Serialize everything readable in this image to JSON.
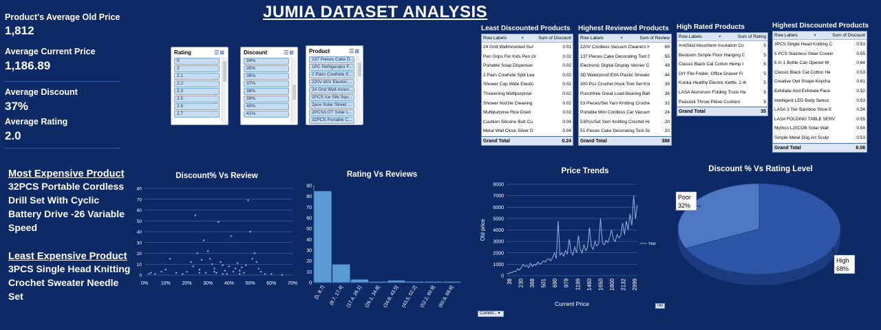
{
  "title": "JUMIA DATASET ANALYSIS",
  "kpis": [
    {
      "label": "Product's Average Old Price",
      "value": "1,812"
    },
    {
      "label": "Average Current Price",
      "value": "1,186.89"
    },
    {
      "label": "Average Discount",
      "value": "37%"
    },
    {
      "label": "Average Rating",
      "value": "2.0"
    }
  ],
  "most_expensive": {
    "label": "Most Expensive Product",
    "name": "32PCS Portable Cordless Drill Set With Cyclic Battery Drive -26 Variable Speed"
  },
  "least_expensive": {
    "label": "Least Expensive Product",
    "name": "3PCS Single Head Knitting Crochet Sweater Needle Set"
  },
  "slicers": {
    "ratings": {
      "label": "Rating",
      "items": [
        "0",
        "2",
        "2.1",
        "2.2",
        "2.3",
        "2.5",
        "2.6",
        "2.7"
      ]
    },
    "discount": {
      "label": "Discount",
      "items": [
        "34%",
        "35%",
        "36%",
        "37%",
        "38%",
        "39%",
        "40%",
        "41%"
      ]
    },
    "product": {
      "label": "Product",
      "items": [
        "137 Pieces Cake D...",
        "1PC Refrigerator F...",
        "2 Pairs Cowhide S...",
        "220V 80V Electric ...",
        "24 Grid Wall-moun...",
        "2PCS Ice Silk Squ...",
        "2pce Solar Street ...",
        "2PCS/LOT Solar L...",
        "32PCS Portable C..."
      ]
    }
  },
  "tables": [
    {
      "title": "Least Discounted Products",
      "col1": "Row Labels",
      "col2": "Sum of Discount",
      "rows": [
        [
          "24 Grid Wallmounted Sur",
          "0.01"
        ],
        [
          "Pen Grips For Kids Pen Gr",
          "0.02"
        ],
        [
          "Portable Soap Dispenser",
          "0.02"
        ],
        [
          "2 Pairs Cowhide Split Lea",
          "0.02"
        ],
        [
          "Shower Cap Wide Elastic",
          "0.02"
        ],
        [
          "Thickening Multipurpose",
          "0.02"
        ],
        [
          "Shower Nozzle Cleaning",
          "0.02"
        ],
        [
          "Multipurpose Rice Drain",
          "0.02"
        ],
        [
          "Cushion Silicone Butt Cu",
          "0.04"
        ],
        [
          "Metal Wall Clock Silver D",
          "0.04"
        ]
      ],
      "total_label": "Grand Total",
      "total": "0.24"
    },
    {
      "title": "Highest Reviewed Products",
      "col1": "Row Labels",
      "col2": "Sum of Review",
      "rows": [
        [
          "220V Cordless Vacuum Cleaners Handh",
          "69"
        ],
        [
          "137 Pieces Cake Decorating Tool Set Ba",
          "55"
        ],
        [
          "Electronic Digital Display Vernier Calipe",
          "49"
        ],
        [
          "3D Waterproof EVA Plastic Shower Curt",
          "44"
        ],
        [
          "300 Pcs Crochet Hook Tool Set Knitting",
          "39"
        ],
        [
          "Punchfree Great Load Bearing Bathroom",
          "36"
        ],
        [
          "53 Pieces/Set Yarn Knitting Crochet Hoc",
          "32"
        ],
        [
          "Portable Mini Cordless Car Vacuum Clea",
          "24"
        ],
        [
          "53Pcs/Set Yarn Knitting Crochet Hooks",
          "20"
        ],
        [
          "51 Pieces Cake Decorating Tool Set Gift",
          "20"
        ]
      ],
      "total_label": "Grand Total",
      "total": "388"
    },
    {
      "title": "High Rated Products",
      "col1": "Row Labels",
      "col2": "Sum of Rating",
      "rows": [
        [
          "AntiSkid Absorbent Insulation Co",
          "5"
        ],
        [
          "Bestoom Simple Floor Hanging C",
          "5"
        ],
        [
          "Classic Black Cat Cotton Hemp I",
          "5"
        ],
        [
          "DIY File Folder, Office Drawer Fi",
          "5"
        ],
        [
          "Kunka Healthy Electric Kettle, 2.4l",
          "5"
        ],
        [
          "LASA Aluminum Folding Truck Ha",
          "5"
        ],
        [
          "Peacock Throw Pillow Cushion",
          "5"
        ]
      ],
      "total_label": "Grand Total",
      "total": "35"
    },
    {
      "title": "Highest Discounted Products",
      "col1": "Row Labels",
      "col2": "Sum of Discount",
      "rows": [
        [
          "3PCS Single Head Knitting C",
          "0.53"
        ],
        [
          "5 PCS Stainless Steel Cookin",
          "0.55"
        ],
        [
          "6 In 1 Bottle Can Opener M",
          "0.64"
        ],
        [
          "Classic Black Cat Cotton He",
          "0.53"
        ],
        [
          "Creative Owl Shape Keycha",
          "0.81"
        ],
        [
          "Exfoliate And Exfoliate Face",
          "0.52"
        ],
        [
          "Intelligent LED Body Senso",
          "0.53"
        ],
        [
          "LASA 3 Tier Bamboo Shoe E",
          "0.54"
        ],
        [
          "LASA FOLDING TABLE SERV",
          "0.55"
        ],
        [
          "Mythco L20COB Solar Wall",
          "0.54"
        ],
        [
          "Simple Metal Dog Art Sculp",
          "0.53"
        ]
      ],
      "total_label": "Grand Total",
      "total": "6.08"
    }
  ],
  "chart_data": [
    {
      "type": "scatter",
      "title": "Discount% Vs Review",
      "xlim": [
        0,
        0.7
      ],
      "ylim": [
        0,
        80
      ],
      "x_ticks": [
        "0%",
        "10%",
        "20%",
        "30%",
        "40%",
        "50%",
        "60%",
        "70%"
      ],
      "y_ticks": [
        "0",
        "10",
        "20",
        "30",
        "40",
        "50",
        "60",
        "70",
        "80"
      ],
      "points": [
        [
          0.02,
          1
        ],
        [
          0.03,
          2
        ],
        [
          0.05,
          1
        ],
        [
          0.08,
          3
        ],
        [
          0.1,
          5
        ],
        [
          0.12,
          15
        ],
        [
          0.15,
          2
        ],
        [
          0.18,
          1
        ],
        [
          0.2,
          3
        ],
        [
          0.22,
          12
        ],
        [
          0.23,
          8
        ],
        [
          0.24,
          55
        ],
        [
          0.25,
          20
        ],
        [
          0.26,
          5
        ],
        [
          0.27,
          14
        ],
        [
          0.28,
          32
        ],
        [
          0.29,
          2
        ],
        [
          0.3,
          22
        ],
        [
          0.31,
          15
        ],
        [
          0.32,
          10
        ],
        [
          0.33,
          6
        ],
        [
          0.34,
          2
        ],
        [
          0.35,
          49
        ],
        [
          0.36,
          12
        ],
        [
          0.37,
          9
        ],
        [
          0.38,
          4
        ],
        [
          0.39,
          1
        ],
        [
          0.4,
          8
        ],
        [
          0.41,
          36
        ],
        [
          0.42,
          3
        ],
        [
          0.43,
          6
        ],
        [
          0.44,
          11
        ],
        [
          0.45,
          4
        ],
        [
          0.46,
          7
        ],
        [
          0.47,
          2
        ],
        [
          0.48,
          9
        ],
        [
          0.49,
          69
        ],
        [
          0.5,
          40
        ],
        [
          0.51,
          15
        ],
        [
          0.52,
          20
        ],
        [
          0.53,
          12
        ],
        [
          0.54,
          6
        ],
        [
          0.55,
          3
        ],
        [
          0.57,
          1
        ],
        [
          0.6,
          1
        ],
        [
          0.65,
          0
        ],
        [
          0.26,
          2
        ],
        [
          0.33,
          3
        ],
        [
          0.37,
          1
        ],
        [
          0.45,
          1
        ]
      ]
    },
    {
      "type": "bar",
      "title": "Rating Vs Reviews",
      "categories": [
        "[0, 8.7]",
        "(8.7, 17.4]",
        "(17.4, 26.1]",
        "(26.1, 34.8]",
        "(34.8, 43.5]",
        "(43.5, 52.2]",
        "(52.2, 60.9]",
        "(60.9, 69.6]"
      ],
      "values": [
        85,
        17,
        3,
        1,
        2,
        1,
        1,
        1
      ],
      "ylim": [
        0,
        90
      ],
      "y_ticks": [
        "0",
        "10",
        "20",
        "30",
        "40",
        "50",
        "60",
        "70",
        "80",
        "90"
      ]
    },
    {
      "type": "line",
      "title": "Price Trends",
      "xlabel": "Current Price",
      "ylabel": "Old price",
      "legend": "Total",
      "ylim": [
        0,
        8000
      ],
      "y_ticks": [
        "0",
        "1000",
        "2000",
        "3000",
        "4000",
        "5000",
        "6000",
        "7000",
        "8000"
      ],
      "x_ticks": [
        "38",
        "230",
        "368",
        "501",
        "690",
        "979",
        "1199",
        "1460",
        "1650",
        "1800",
        "2132",
        "2999"
      ],
      "values": [
        200,
        150,
        300,
        250,
        400,
        350,
        600,
        500,
        700,
        1000,
        800,
        900,
        700,
        1100,
        800,
        1000,
        900,
        1200,
        1000,
        1100,
        1300,
        1200,
        1400,
        1500,
        1300,
        1600,
        2000,
        1500,
        4800,
        1800,
        2000,
        1700,
        2200,
        1900,
        3200,
        2100,
        1800,
        2500,
        2000,
        3500,
        2300,
        2000,
        2700,
        2200,
        2500,
        4200,
        2600,
        2300,
        3000,
        2600,
        2800,
        5000,
        2900,
        2700,
        3100,
        2900,
        3400,
        4000,
        3200,
        3000,
        3600,
        3300,
        3500,
        4600,
        3600,
        4800,
        4000,
        5400,
        4400,
        7000,
        5000,
        6200
      ]
    },
    {
      "type": "pie",
      "title": "Discount % Vs Rating Level",
      "slices": [
        {
          "label": "High",
          "value": 68,
          "pct": "68%",
          "color": "#2d56a8"
        },
        {
          "label": "Poor",
          "value": 32,
          "pct": "32%",
          "color": "#4f78c4"
        }
      ]
    }
  ],
  "filters": {
    "price_filter": "Current...",
    "series_filter": "Old"
  }
}
